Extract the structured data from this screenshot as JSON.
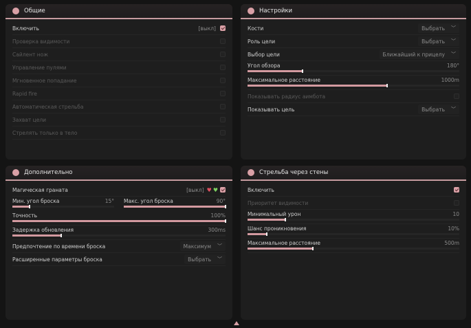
{
  "colors": {
    "accent": "#d39aa0",
    "panel": "#1e1e1e",
    "background": "#141414"
  },
  "general": {
    "title": "Общие",
    "icon": "person-icon",
    "rows": [
      {
        "label": "Включить",
        "value": "[выкл]",
        "checked": true
      },
      {
        "label": "Проверка видимости",
        "checked": false,
        "disabled": true
      },
      {
        "label": "Сайлент нож",
        "checked": false,
        "disabled": true
      },
      {
        "label": "Управление пулями",
        "checked": false,
        "disabled": true
      },
      {
        "label": "Мгновенное попадание",
        "checked": false,
        "disabled": true
      },
      {
        "label": "Rapid fire",
        "checked": false,
        "disabled": true
      },
      {
        "label": "Автоматическая стрельба",
        "checked": false,
        "disabled": true
      },
      {
        "label": "Захват цели",
        "checked": false,
        "disabled": true
      },
      {
        "label": "Стрелять только в тело",
        "checked": false,
        "disabled": true
      }
    ]
  },
  "settings": {
    "title": "Настройки",
    "icon": "gear-icon",
    "rows": [
      {
        "type": "select",
        "label": "Кости",
        "value": "Выбрать"
      },
      {
        "type": "select",
        "label": "Роль цели",
        "value": "Выбрать"
      },
      {
        "type": "select",
        "label": "Выбор цели",
        "value": "Ближайший к прицелу"
      },
      {
        "type": "slider",
        "label": "Угол обзора",
        "value": "180°",
        "fraction": 0.26
      },
      {
        "type": "slider",
        "label": "Максимальное расстояние",
        "value": "1000m",
        "fraction": 0.66
      },
      {
        "type": "check",
        "label": "Показывать радиус аимбота",
        "checked": false,
        "disabled": true
      },
      {
        "type": "select",
        "label": "Показывать цель",
        "value": "Выбрать"
      }
    ]
  },
  "extra": {
    "title": "Дополнительно",
    "icon": "person-icon",
    "grenade": {
      "label": "Магическая граната",
      "value": "[выкл]",
      "checked": true
    },
    "min_angle": {
      "label": "Мин. угол броска",
      "value": "15°",
      "fraction": 0.17
    },
    "max_angle": {
      "label": "Макс. угол броска",
      "value": "90°",
      "fraction": 1.0
    },
    "rows": [
      {
        "type": "slider",
        "label": "Точность",
        "value": "100%",
        "fraction": 1.0
      },
      {
        "type": "slider",
        "label": "Задержка обновления",
        "value": "300ms",
        "fraction": 0.23
      },
      {
        "type": "select",
        "label": "Предпочтение по времени броска",
        "value": "Максимум"
      },
      {
        "type": "select",
        "label": "Расширенные параметры броска",
        "value": "Выбрать"
      }
    ]
  },
  "wallbang": {
    "title": "Стрельба через стены",
    "icon": "gear-icon",
    "rows": [
      {
        "type": "check",
        "label": "Включить",
        "checked": true
      },
      {
        "type": "check",
        "label": "Приоритет видимости",
        "checked": false,
        "disabled": true
      },
      {
        "type": "slider",
        "label": "Минимальный урон",
        "value": "10",
        "fraction": 0.18
      },
      {
        "type": "slider",
        "label": "Шанс проникновения",
        "value": "10%",
        "fraction": 0.09
      },
      {
        "type": "slider",
        "label": "Максимальное расстояние",
        "value": "500m",
        "fraction": 0.31
      }
    ]
  }
}
